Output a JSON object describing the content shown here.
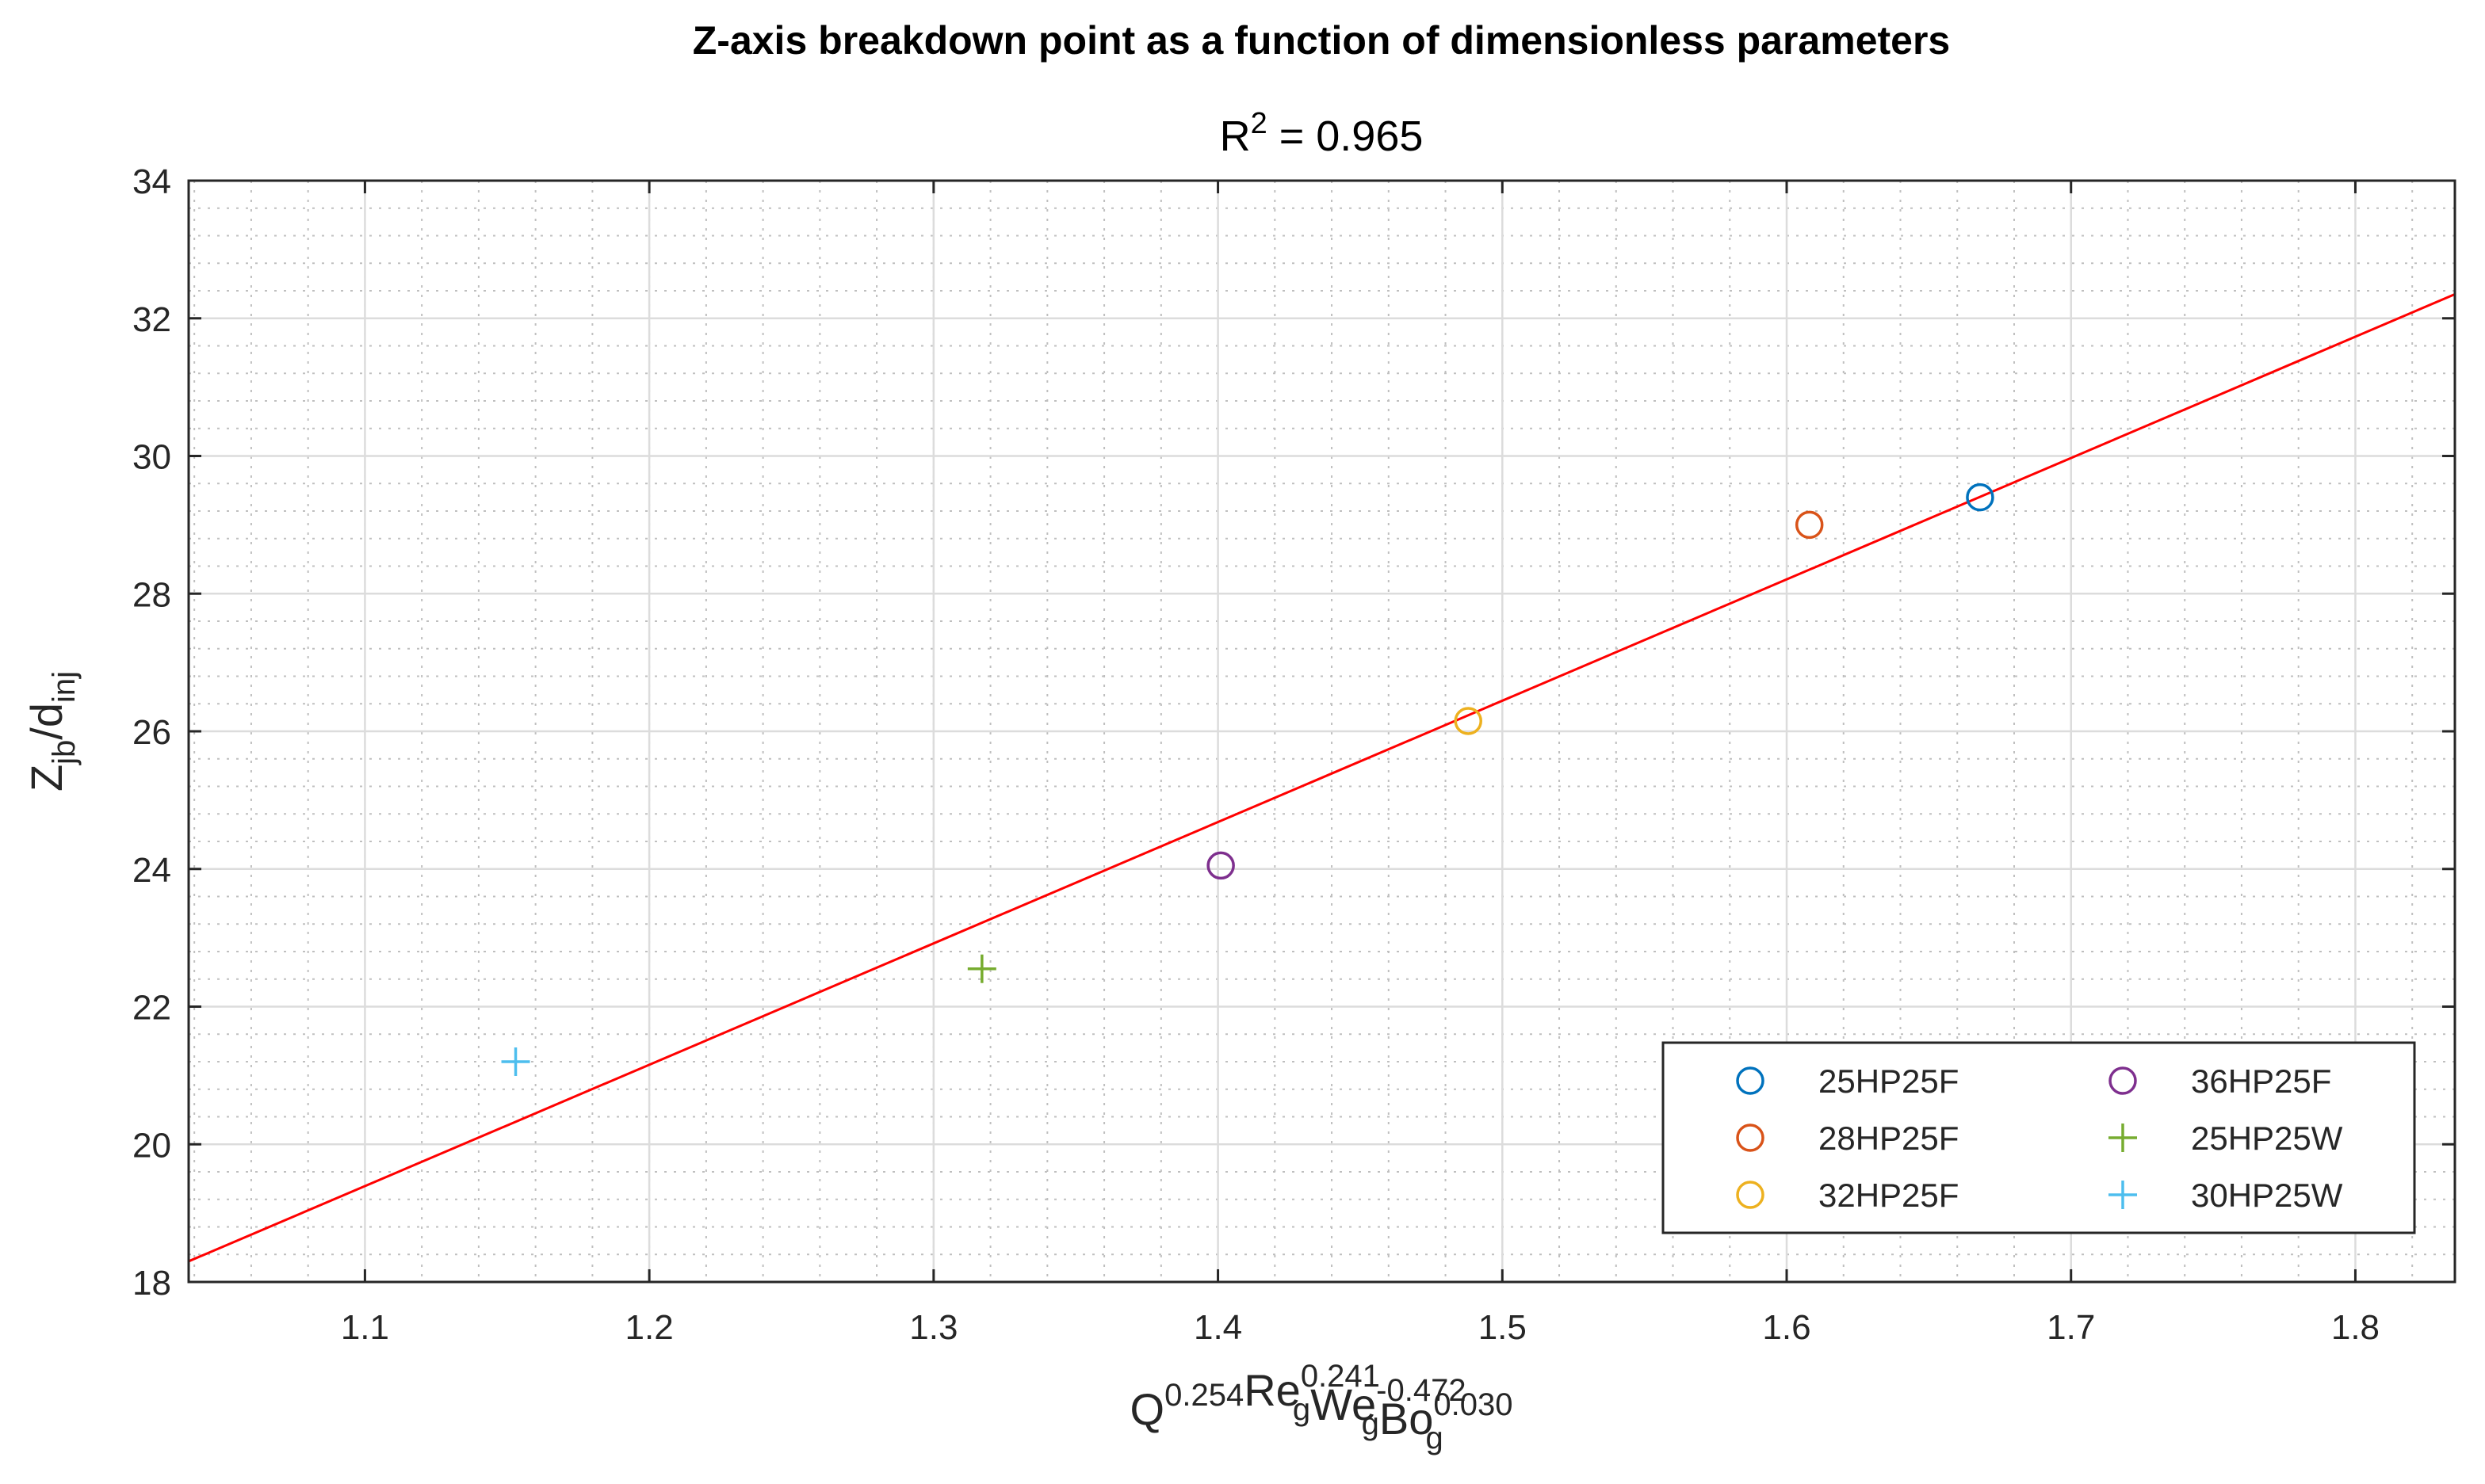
{
  "chart_data": {
    "type": "scatter",
    "title": "Z-axis breakdown point as a function of dimensionless parameters",
    "subtitle": {
      "base": "R",
      "sup": "2",
      "rest": " = 0.965"
    },
    "xlabel": {
      "parts": [
        {
          "base": "Q",
          "sup": "0.254",
          "sub": ""
        },
        {
          "base": "Re",
          "sup": "0.241",
          "sub": "g"
        },
        {
          "base": "We",
          "sup": "-0.472",
          "sub": "g"
        },
        {
          "base": "Bo",
          "sup": "0.030",
          "sub": "g"
        }
      ]
    },
    "ylabel": {
      "z": "Z",
      "z_sub": "jb",
      "slash": "/d",
      "d_sub": "inj"
    },
    "xlim": [
      1.038,
      1.835
    ],
    "ylim": [
      18,
      34
    ],
    "xticks": [
      "1.1",
      "1.2",
      "1.3",
      "1.4",
      "1.5",
      "1.6",
      "1.7",
      "1.8"
    ],
    "yticks": [
      "18",
      "20",
      "22",
      "24",
      "26",
      "28",
      "30",
      "32",
      "34"
    ],
    "grid": true,
    "minor_grid": true,
    "legend_position": "bottom-right",
    "series": [
      {
        "name": "25HP25F",
        "marker": "circle",
        "color": "#0072BD",
        "x": 1.668,
        "y": 29.4
      },
      {
        "name": "28HP25F",
        "marker": "circle",
        "color": "#D95319",
        "x": 1.608,
        "y": 29.0
      },
      {
        "name": "32HP25F",
        "marker": "circle",
        "color": "#EDB120",
        "x": 1.488,
        "y": 26.15
      },
      {
        "name": "36HP25F",
        "marker": "circle",
        "color": "#7E2F8E",
        "x": 1.401,
        "y": 24.05
      },
      {
        "name": "25HP25W",
        "marker": "plus",
        "color": "#77AC30",
        "x": 1.317,
        "y": 22.55
      },
      {
        "name": "30HP25W",
        "marker": "plus",
        "color": "#4DBEEE",
        "x": 1.153,
        "y": 21.2
      }
    ],
    "fit_line": {
      "color": "#FF0000",
      "x": [
        1.038,
        1.835
      ],
      "y": [
        18.3,
        32.35
      ]
    }
  }
}
